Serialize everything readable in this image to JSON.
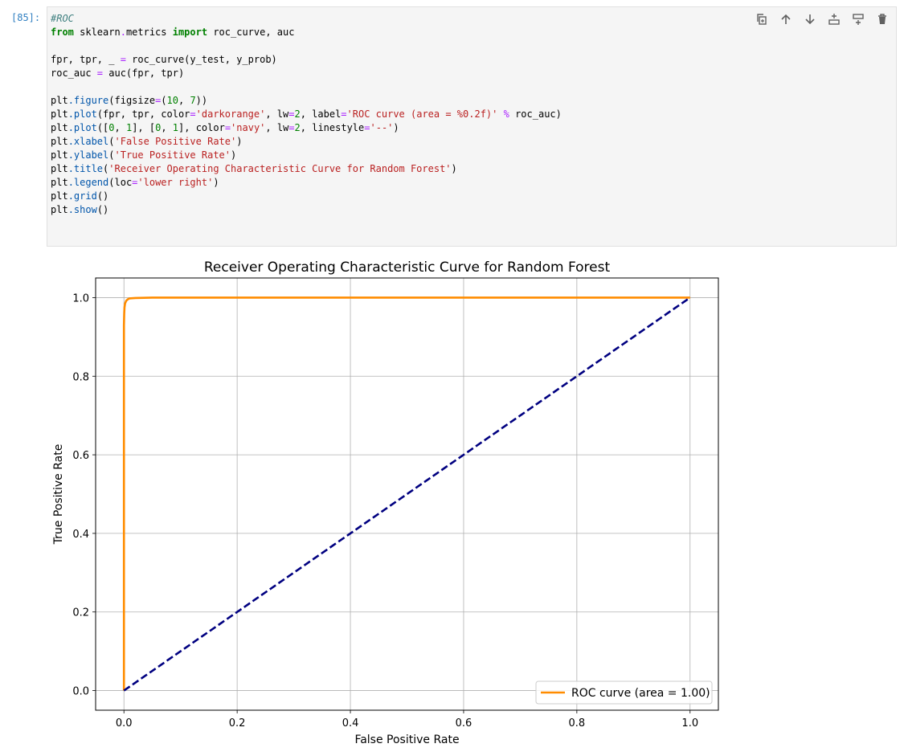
{
  "cell": {
    "prompt": "[85]:",
    "code_lines": [
      [
        {
          "t": "#ROC",
          "c": "comment"
        }
      ],
      [
        {
          "t": "from",
          "c": "kw"
        },
        {
          "t": " sklearn"
        },
        {
          "t": ".",
          "c": "op"
        },
        {
          "t": "metrics "
        },
        {
          "t": "import",
          "c": "kw"
        },
        {
          "t": " roc_curve, auc"
        }
      ],
      [],
      [
        {
          "t": "fpr, tpr, _ "
        },
        {
          "t": "=",
          "c": "op"
        },
        {
          "t": " roc_curve(y_test, y_prob)"
        }
      ],
      [
        {
          "t": "roc_auc "
        },
        {
          "t": "=",
          "c": "op"
        },
        {
          "t": " auc(fpr, tpr)"
        }
      ],
      [],
      [
        {
          "t": "plt"
        },
        {
          "t": ".figure",
          "c": "attr"
        },
        {
          "t": "(figsize"
        },
        {
          "t": "=",
          "c": "op"
        },
        {
          "t": "("
        },
        {
          "t": "10",
          "c": "num"
        },
        {
          "t": ", "
        },
        {
          "t": "7",
          "c": "num"
        },
        {
          "t": "))"
        }
      ],
      [
        {
          "t": "plt"
        },
        {
          "t": ".plot",
          "c": "attr"
        },
        {
          "t": "(fpr, tpr, color"
        },
        {
          "t": "=",
          "c": "op"
        },
        {
          "t": "'darkorange'",
          "c": "str"
        },
        {
          "t": ", lw"
        },
        {
          "t": "=",
          "c": "op"
        },
        {
          "t": "2",
          "c": "num"
        },
        {
          "t": ", label"
        },
        {
          "t": "=",
          "c": "op"
        },
        {
          "t": "'ROC curve (area = %0.2f)'",
          "c": "str"
        },
        {
          "t": " "
        },
        {
          "t": "%",
          "c": "op"
        },
        {
          "t": " roc_auc)"
        }
      ],
      [
        {
          "t": "plt"
        },
        {
          "t": ".plot",
          "c": "attr"
        },
        {
          "t": "(["
        },
        {
          "t": "0",
          "c": "num"
        },
        {
          "t": ", "
        },
        {
          "t": "1",
          "c": "num"
        },
        {
          "t": "], ["
        },
        {
          "t": "0",
          "c": "num"
        },
        {
          "t": ", "
        },
        {
          "t": "1",
          "c": "num"
        },
        {
          "t": "], color"
        },
        {
          "t": "=",
          "c": "op"
        },
        {
          "t": "'navy'",
          "c": "str"
        },
        {
          "t": ", lw"
        },
        {
          "t": "=",
          "c": "op"
        },
        {
          "t": "2",
          "c": "num"
        },
        {
          "t": ", linestyle"
        },
        {
          "t": "=",
          "c": "op"
        },
        {
          "t": "'--'",
          "c": "str"
        },
        {
          "t": ")"
        }
      ],
      [
        {
          "t": "plt"
        },
        {
          "t": ".xlabel",
          "c": "attr"
        },
        {
          "t": "("
        },
        {
          "t": "'False Positive Rate'",
          "c": "str"
        },
        {
          "t": ")"
        }
      ],
      [
        {
          "t": "plt"
        },
        {
          "t": ".ylabel",
          "c": "attr"
        },
        {
          "t": "("
        },
        {
          "t": "'True Positive Rate'",
          "c": "str"
        },
        {
          "t": ")"
        }
      ],
      [
        {
          "t": "plt"
        },
        {
          "t": ".title",
          "c": "attr"
        },
        {
          "t": "("
        },
        {
          "t": "'Receiver Operating Characteristic Curve for Random Forest'",
          "c": "str"
        },
        {
          "t": ")"
        }
      ],
      [
        {
          "t": "plt"
        },
        {
          "t": ".legend",
          "c": "attr"
        },
        {
          "t": "(loc"
        },
        {
          "t": "=",
          "c": "op"
        },
        {
          "t": "'lower right'",
          "c": "str"
        },
        {
          "t": ")"
        }
      ],
      [
        {
          "t": "plt"
        },
        {
          "t": ".grid",
          "c": "attr"
        },
        {
          "t": "()"
        }
      ],
      [
        {
          "t": "plt"
        },
        {
          "t": ".show",
          "c": "attr"
        },
        {
          "t": "()"
        }
      ]
    ]
  },
  "toolbar": {
    "buttons": [
      {
        "name": "duplicate-cell-button",
        "icon": "copy-icon"
      },
      {
        "name": "move-up-button",
        "icon": "arrow-up-icon"
      },
      {
        "name": "move-down-button",
        "icon": "arrow-down-icon"
      },
      {
        "name": "insert-above-button",
        "icon": "insert-above-icon"
      },
      {
        "name": "insert-below-button",
        "icon": "insert-below-icon"
      },
      {
        "name": "delete-cell-button",
        "icon": "trash-icon"
      }
    ],
    "icon_color": "#616161"
  },
  "chart_data": {
    "type": "line",
    "title": "Receiver Operating Characteristic Curve for Random Forest",
    "xlabel": "False Positive Rate",
    "ylabel": "True Positive Rate",
    "xlim": [
      -0.05,
      1.05
    ],
    "ylim": [
      -0.05,
      1.05
    ],
    "xticks": [
      "0.0",
      "0.2",
      "0.4",
      "0.6",
      "0.8",
      "1.0"
    ],
    "yticks": [
      "0.0",
      "0.2",
      "0.4",
      "0.6",
      "0.8",
      "1.0"
    ],
    "grid": true,
    "legend_position": "lower-right",
    "series": [
      {
        "name": "ROC curve (area = 1.00)",
        "color": "#ff8c00",
        "linestyle": "solid",
        "x": [
          0.0,
          0.0,
          0.0,
          0.0005,
          0.001,
          0.002,
          0.004,
          0.007,
          0.01,
          0.02,
          0.05,
          0.2,
          0.5,
          1.0
        ],
        "y": [
          0.0,
          0.6,
          0.93,
          0.96,
          0.975,
          0.985,
          0.992,
          0.996,
          0.998,
          0.999,
          1.0,
          1.0,
          1.0,
          1.0
        ]
      },
      {
        "color": "#000080",
        "linestyle": "dashed",
        "x": [
          0,
          1
        ],
        "y": [
          0,
          1
        ]
      }
    ]
  }
}
